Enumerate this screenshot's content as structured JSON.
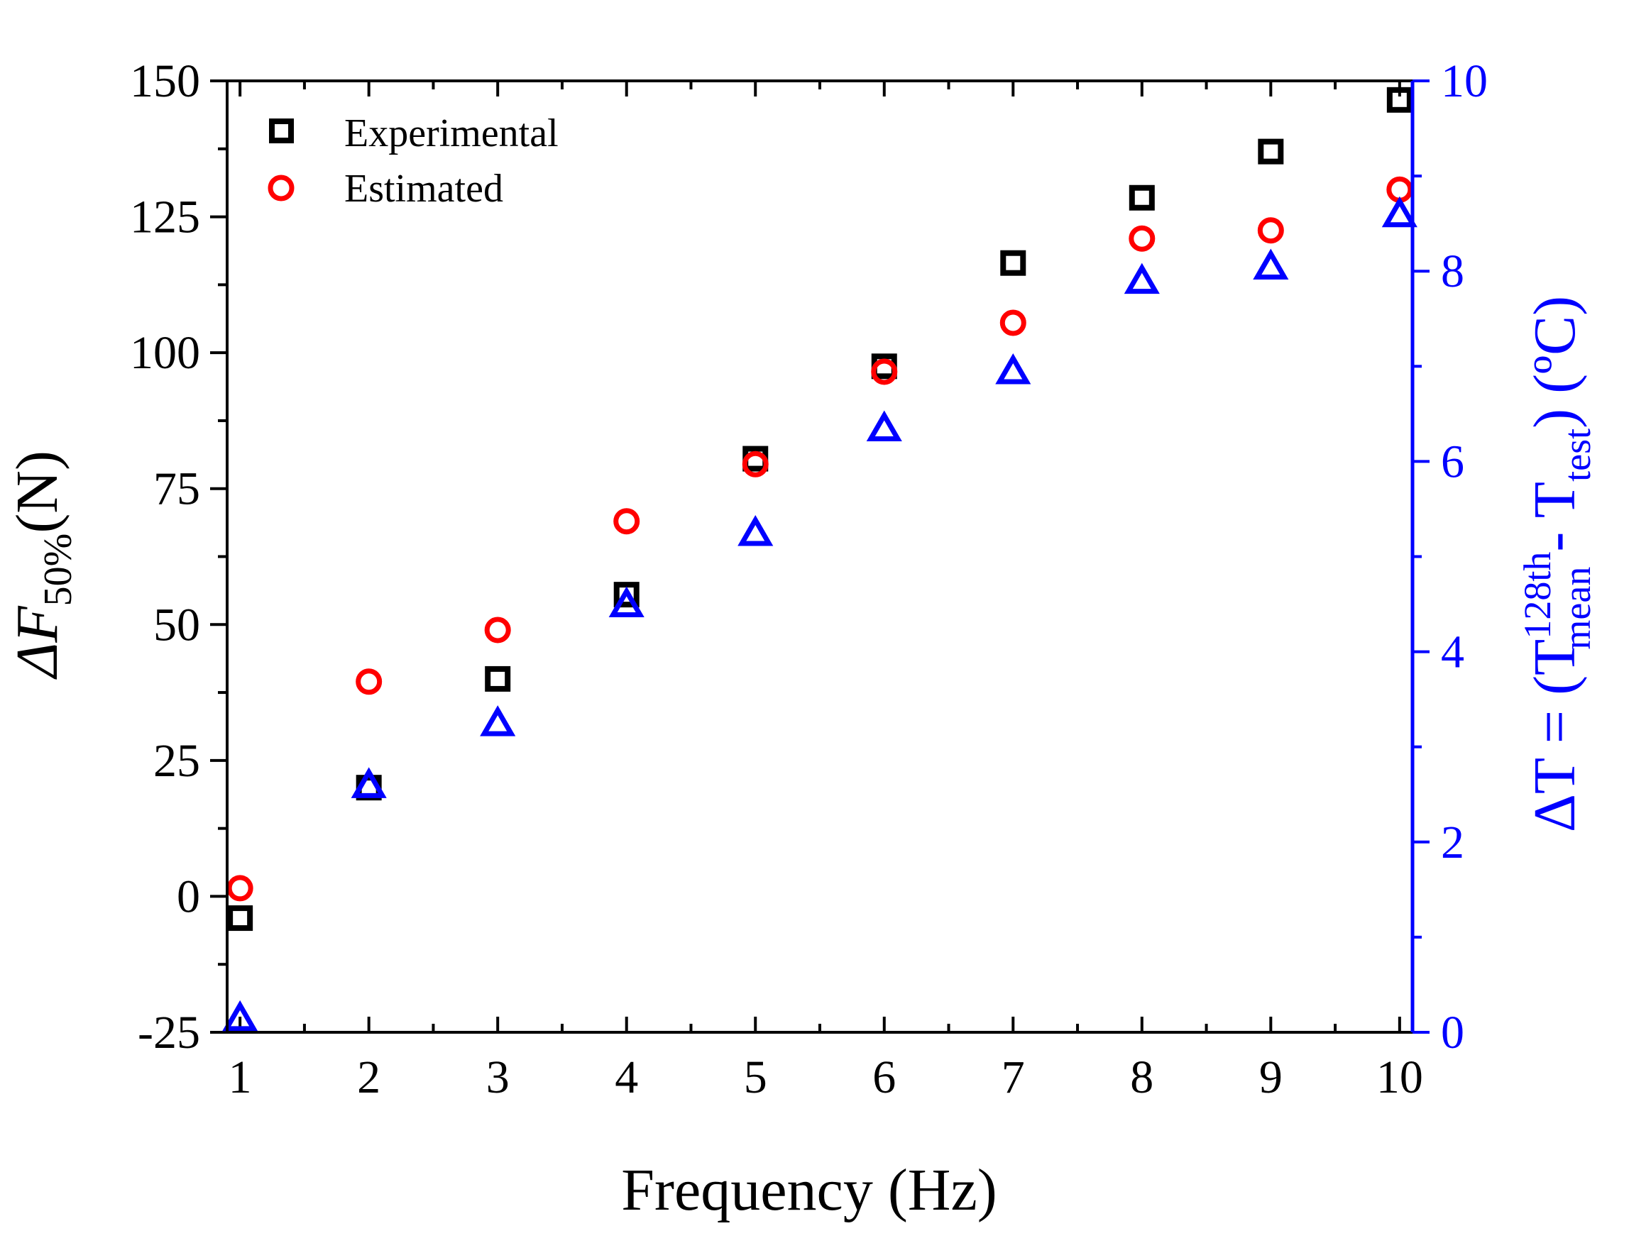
{
  "chart_data": {
    "type": "scatter",
    "x": [
      1,
      2,
      3,
      4,
      5,
      6,
      7,
      8,
      9,
      10
    ],
    "xlabel": "Frequency (Hz)",
    "xlim": [
      0.9,
      10.1
    ],
    "xticks": [
      1,
      2,
      3,
      4,
      5,
      6,
      7,
      8,
      9,
      10
    ],
    "ylabel_left": {
      "prefix": "ΔF",
      "subscript": "50%",
      "suffix": "(N)"
    },
    "ylim_left": [
      -25,
      150
    ],
    "yticks_left": [
      -25,
      0,
      25,
      50,
      75,
      100,
      125,
      150
    ],
    "ylabel_right": {
      "part1": "ΔT = (T",
      "sup": "128th",
      "sub1": "mean",
      "part2": " - T",
      "sub2": "test",
      "part3": ") (ºC)"
    },
    "ylim_right": [
      0,
      10
    ],
    "yticks_right": [
      0,
      2,
      4,
      6,
      8,
      10
    ],
    "series": [
      {
        "name": "Experimental",
        "axis": "left",
        "marker": "square",
        "color": "#000000",
        "values": [
          -4,
          20,
          40,
          55.5,
          80.5,
          97.5,
          116.5,
          128.5,
          137,
          146.5
        ]
      },
      {
        "name": "Estimated",
        "axis": "left",
        "marker": "circle",
        "color": "#ff0000",
        "values": [
          1.5,
          39.5,
          49,
          69,
          79.5,
          96.5,
          105.5,
          121,
          122.5,
          130
        ]
      },
      {
        "name": "ΔT",
        "axis": "right",
        "marker": "triangle",
        "color": "#0000ff",
        "values": [
          0.15,
          2.6,
          3.25,
          4.5,
          5.25,
          6.35,
          6.95,
          7.9,
          8.05,
          8.6
        ]
      }
    ],
    "legend": {
      "position": "top-left",
      "entries": [
        "Experimental",
        "Estimated"
      ]
    }
  },
  "colors": {
    "left_axis": "#000000",
    "right_axis": "#0000ff"
  }
}
